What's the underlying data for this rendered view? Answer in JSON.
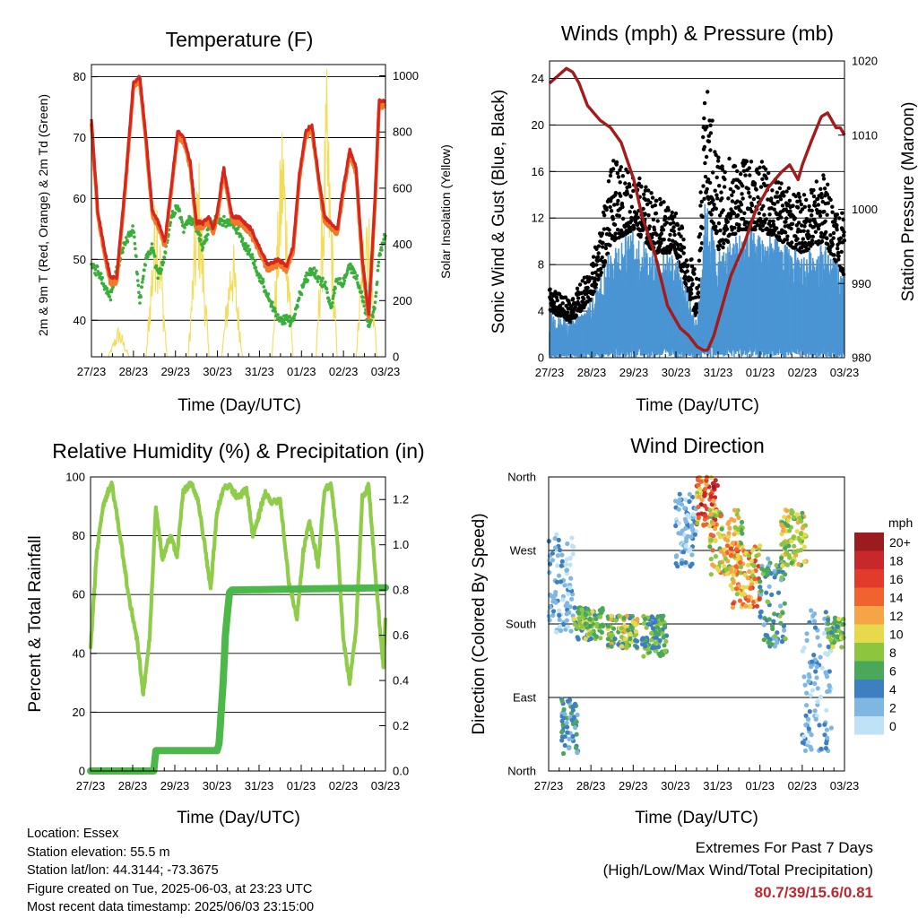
{
  "x_tick_labels": [
    "27/23",
    "28/23",
    "29/23",
    "30/23",
    "31/23",
    "01/23",
    "02/23",
    "03/23"
  ],
  "x_axis_label": "Time (Day/UTC)",
  "panels": {
    "temperature": {
      "title": "Temperature (F)",
      "ylabel_left": "2m & 9m T (Red, Orange) & 2m Td (Green)",
      "ylabel_right": "Solar Insolation (Yellow)",
      "left_ticks": [
        "40",
        "50",
        "60",
        "70",
        "80"
      ],
      "right_ticks": [
        "0",
        "200",
        "400",
        "600",
        "800",
        "1000"
      ]
    },
    "winds": {
      "title": "Winds (mph) & Pressure (mb)",
      "ylabel_left": "Sonic Wind & Gust (Blue, Black)",
      "ylabel_right": "Station Pressure (Maroon)",
      "left_ticks": [
        "0",
        "4",
        "8",
        "12",
        "16",
        "20",
        "24"
      ],
      "right_ticks": [
        "980",
        "990",
        "1000",
        "1010",
        "1020"
      ]
    },
    "humidity": {
      "title": "Relative Humidity (%) & Precipitation (in)",
      "ylabel_left": "Percent & Total Rainfall",
      "left_ticks": [
        "0",
        "20",
        "40",
        "60",
        "80",
        "100"
      ],
      "right_ticks": [
        "0.0",
        "0.2",
        "0.4",
        "0.6",
        "0.8",
        "1.0",
        "1.2"
      ]
    },
    "direction": {
      "title": "Wind Direction",
      "ylabel_left": "Direction (Colored By Speed)",
      "left_ticks": [
        "North",
        "East",
        "South",
        "West",
        "North"
      ],
      "legend_title": "mph",
      "legend_labels": [
        "20+",
        "18",
        "16",
        "14",
        "12",
        "10",
        "8",
        "6",
        "4",
        "2",
        "0"
      ],
      "legend_colors": [
        "#9b1c1f",
        "#c8272b",
        "#e23b2c",
        "#f0632f",
        "#f6a546",
        "#e6d94b",
        "#8cc63f",
        "#49a85a",
        "#3d7fc0",
        "#7fb7e3",
        "#bfe2f6"
      ]
    }
  },
  "colors": {
    "temp2m": "#d7261e",
    "temp9m": "#f07a2a",
    "dewpoint": "#3aae3a",
    "solar": "#f3dc5a",
    "wind": "#4a95d3",
    "gust": "#000000",
    "pressure": "#a41b1b",
    "rh": "#8fcc4a",
    "precip": "#4cb84a"
  },
  "chart_data": [
    {
      "type": "line",
      "title": "Temperature (F)",
      "xlabel": "Time (Day/UTC)",
      "ylabel": "2m & 9m T (Red, Orange) & 2m Td (Green)",
      "ylabel_right": "Solar Insolation (Yellow)",
      "ylim": [
        34,
        82
      ],
      "ylim_right": [
        0,
        1040
      ],
      "x_days": [
        0,
        7
      ],
      "x": [
        0,
        0.15,
        0.3,
        0.45,
        0.6,
        0.8,
        1.0,
        1.15,
        1.3,
        1.45,
        1.6,
        1.75,
        1.9,
        2.05,
        2.2,
        2.35,
        2.5,
        2.65,
        2.8,
        2.9,
        3.0,
        3.15,
        3.35,
        3.5,
        3.65,
        3.8,
        4.0,
        4.2,
        4.45,
        4.65,
        4.8,
        4.95,
        5.1,
        5.25,
        5.4,
        5.55,
        5.7,
        5.85,
        6.0,
        6.15,
        6.3,
        6.45,
        6.6,
        6.75,
        6.85,
        7.0
      ],
      "series": [
        {
          "name": "2m T",
          "values": [
            73,
            58,
            52,
            47,
            47,
            62,
            79,
            80,
            70,
            58,
            56,
            53,
            62,
            71,
            70,
            66,
            56,
            56,
            57,
            55,
            58,
            65,
            57,
            57,
            56,
            55,
            52,
            49,
            50,
            49,
            52,
            64,
            71,
            72,
            64,
            57,
            56,
            55,
            62,
            68,
            65,
            50,
            41,
            60,
            76,
            76
          ]
        },
        {
          "name": "2m Td",
          "values": [
            49,
            48,
            46,
            44,
            48,
            53,
            55,
            43,
            50,
            52,
            47,
            51,
            57,
            59,
            55,
            57,
            55,
            52,
            55,
            56,
            57,
            56,
            56,
            55,
            52,
            51,
            47,
            44,
            40,
            40,
            40,
            44,
            47,
            48,
            47,
            46,
            42,
            47,
            46,
            49,
            47,
            44,
            39,
            42,
            51,
            54
          ]
        }
      ],
      "solar_peaks": [
        {
          "x": 0.65,
          "value": 120
        },
        {
          "x": 1.55,
          "value": 700
        },
        {
          "x": 2.55,
          "value": 760
        },
        {
          "x": 3.35,
          "value": 480
        },
        {
          "x": 4.55,
          "value": 950
        },
        {
          "x": 5.6,
          "value": 1030
        },
        {
          "x": 6.55,
          "value": 700
        }
      ]
    },
    {
      "type": "line",
      "title": "Winds (mph) & Pressure (mb)",
      "xlabel": "Time (Day/UTC)",
      "ylabel": "Sonic Wind & Gust (Blue, Black)",
      "ylabel_right": "Station Pressure (Maroon)",
      "ylim": [
        0,
        25.5
      ],
      "ylim_right": [
        980,
        1020
      ],
      "x_days": [
        0,
        7
      ],
      "series": [
        {
          "name": "Station Pressure",
          "x": [
            0,
            0.2,
            0.4,
            0.55,
            0.7,
            0.9,
            1.2,
            1.45,
            1.7,
            2.0,
            2.2,
            2.5,
            2.8,
            3.1,
            3.3,
            3.5,
            3.65,
            3.75,
            3.9,
            4.1,
            4.3,
            4.6,
            4.9,
            5.2,
            5.5,
            5.7,
            5.9,
            6.0,
            6.2,
            6.45,
            6.6,
            6.8,
            6.9,
            7.0
          ],
          "values": [
            1017,
            1018,
            1019,
            1018.5,
            1017,
            1014,
            1012,
            1011,
            1009,
            1004,
            999,
            994,
            987,
            984,
            983,
            981.5,
            981,
            981,
            983,
            987,
            991,
            995,
            1000,
            1003,
            1005,
            1006,
            1004,
            1006,
            1009,
            1012.5,
            1013,
            1011,
            1011,
            1010
          ]
        }
      ],
      "wind_envelope": {
        "x": [
          0,
          0.5,
          1.0,
          1.5,
          2.0,
          2.5,
          3.0,
          3.5,
          3.7,
          4.0,
          4.5,
          5.0,
          5.5,
          6.0,
          6.5,
          7.0
        ],
        "wind_max": [
          4,
          3,
          5,
          10,
          11,
          9,
          9,
          3,
          14,
          9,
          11,
          11,
          10,
          9,
          10,
          7
        ],
        "gust_max": [
          6,
          5,
          8,
          17,
          16,
          14,
          13,
          7,
          24,
          18,
          17,
          17,
          15,
          14,
          16,
          12
        ]
      }
    },
    {
      "type": "line",
      "title": "Relative Humidity (%) & Precipitation (in)",
      "xlabel": "Time (Day/UTC)",
      "ylabel": "Percent & Total Rainfall",
      "ylim": [
        0,
        100
      ],
      "ylim_right": [
        0,
        1.3
      ],
      "x_days": [
        0,
        7
      ],
      "series": [
        {
          "name": "Relative Humidity",
          "x": [
            0,
            0.15,
            0.3,
            0.5,
            0.7,
            0.9,
            1.1,
            1.25,
            1.4,
            1.55,
            1.7,
            1.9,
            2.05,
            2.2,
            2.4,
            2.55,
            2.7,
            2.85,
            3.0,
            3.15,
            3.3,
            3.5,
            3.7,
            3.85,
            4.0,
            4.15,
            4.3,
            4.5,
            4.7,
            4.9,
            5.05,
            5.2,
            5.4,
            5.55,
            5.7,
            5.85,
            6.0,
            6.15,
            6.3,
            6.45,
            6.6,
            6.8,
            6.95,
            7.0
          ],
          "values": [
            42,
            75,
            90,
            98,
            80,
            60,
            45,
            26,
            45,
            90,
            72,
            80,
            73,
            95,
            98,
            92,
            78,
            62,
            88,
            96,
            97,
            93,
            96,
            80,
            87,
            95,
            91,
            92,
            65,
            52,
            75,
            85,
            70,
            95,
            98,
            80,
            45,
            30,
            48,
            93,
            97,
            60,
            35,
            52
          ]
        },
        {
          "name": "Total Rainfall",
          "x": [
            0,
            1.4,
            1.5,
            1.55,
            1.6,
            3.0,
            3.05,
            3.15,
            3.2,
            3.25,
            3.3,
            3.35,
            7.0
          ],
          "values": [
            0,
            0,
            0,
            0.09,
            0.09,
            0.09,
            0.12,
            0.4,
            0.6,
            0.7,
            0.79,
            0.8,
            0.81
          ]
        }
      ]
    },
    {
      "type": "scatter",
      "title": "Wind Direction",
      "xlabel": "Time (Day/UTC)",
      "ylabel": "Direction (Colored By Speed)",
      "ylim": [
        0,
        360
      ],
      "x_days": [
        0,
        7
      ],
      "colorbar_title": "mph",
      "colorbar_range": [
        0,
        20
      ],
      "clusters": [
        {
          "x": [
            0,
            0.6
          ],
          "dir": [
            170,
            290
          ],
          "speed": [
            0,
            4
          ]
        },
        {
          "x": [
            0.3,
            0.7
          ],
          "dir": [
            20,
            90
          ],
          "speed": [
            2,
            6
          ]
        },
        {
          "x": [
            0.6,
            1.3
          ],
          "dir": [
            160,
            200
          ],
          "speed": [
            4,
            10
          ]
        },
        {
          "x": [
            1.4,
            2.1
          ],
          "dir": [
            150,
            190
          ],
          "speed": [
            4,
            12
          ]
        },
        {
          "x": [
            2.2,
            2.8
          ],
          "dir": [
            140,
            190
          ],
          "speed": [
            3,
            9
          ]
        },
        {
          "x": [
            3.0,
            3.5
          ],
          "dir": [
            250,
            340
          ],
          "speed": [
            0,
            4
          ]
        },
        {
          "x": [
            3.5,
            4.0
          ],
          "dir": [
            300,
            360
          ],
          "speed": [
            8,
            20
          ]
        },
        {
          "x": [
            3.8,
            4.6
          ],
          "dir": [
            240,
            320
          ],
          "speed": [
            6,
            14
          ]
        },
        {
          "x": [
            4.3,
            5.0
          ],
          "dir": [
            200,
            280
          ],
          "speed": [
            8,
            16
          ]
        },
        {
          "x": [
            5.0,
            5.6
          ],
          "dir": [
            150,
            260
          ],
          "speed": [
            2,
            8
          ]
        },
        {
          "x": [
            5.5,
            6.1
          ],
          "dir": [
            250,
            320
          ],
          "speed": [
            6,
            12
          ]
        },
        {
          "x": [
            6.0,
            6.7
          ],
          "dir": [
            20,
            200
          ],
          "speed": [
            0,
            4
          ]
        },
        {
          "x": [
            6.6,
            7.0
          ],
          "dir": [
            150,
            190
          ],
          "speed": [
            4,
            10
          ]
        }
      ]
    }
  ],
  "footer": {
    "location": "Location: Essex",
    "elevation": "Station elevation: 55.5 m",
    "latlon": "Station lat/lon: 44.3144; -73.3675",
    "created": "Figure created on Tue, 2025-06-03, at 23:23 UTC",
    "recent": "Most recent data timestamp: 2025/06/03 23:15:00"
  },
  "extremes": {
    "line1": "Extremes For Past 7 Days",
    "line2": "(High/Low/Max Wind/Total Precipitation)",
    "values": "80.7/39/15.6/0.81"
  }
}
